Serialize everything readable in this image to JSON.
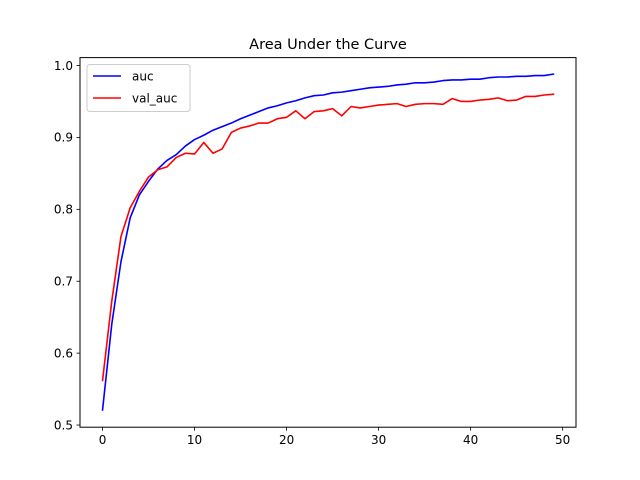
{
  "chart_data": {
    "type": "line",
    "title": "Area Under the Curve",
    "xlabel": "",
    "ylabel": "",
    "xlim": [
      -2.45,
      51.45
    ],
    "ylim": [
      0.497,
      1.011
    ],
    "xticks": [
      0,
      10,
      20,
      30,
      40,
      50
    ],
    "yticks": [
      0.5,
      0.6,
      0.7,
      0.8,
      0.9,
      1.0
    ],
    "ytick_labels": [
      "0.5",
      "0.6",
      "0.7",
      "0.8",
      "0.9",
      "1.0"
    ],
    "grid": false,
    "legend": "upper left",
    "x": [
      0,
      1,
      2,
      3,
      4,
      5,
      6,
      7,
      8,
      9,
      10,
      11,
      12,
      13,
      14,
      15,
      16,
      17,
      18,
      19,
      20,
      21,
      22,
      23,
      24,
      25,
      26,
      27,
      28,
      29,
      30,
      31,
      32,
      33,
      34,
      35,
      36,
      37,
      38,
      39,
      40,
      41,
      42,
      43,
      44,
      45,
      46,
      47,
      48,
      49
    ],
    "series": [
      {
        "name": "auc",
        "color": "#0000ff",
        "values": [
          0.521,
          0.64,
          0.727,
          0.788,
          0.82,
          0.839,
          0.856,
          0.868,
          0.876,
          0.888,
          0.897,
          0.903,
          0.91,
          0.915,
          0.92,
          0.926,
          0.931,
          0.936,
          0.941,
          0.944,
          0.948,
          0.951,
          0.955,
          0.958,
          0.959,
          0.962,
          0.963,
          0.965,
          0.967,
          0.969,
          0.97,
          0.971,
          0.973,
          0.974,
          0.976,
          0.976,
          0.977,
          0.979,
          0.98,
          0.98,
          0.981,
          0.981,
          0.983,
          0.984,
          0.984,
          0.985,
          0.985,
          0.986,
          0.986,
          0.988
        ]
      },
      {
        "name": "val_auc",
        "color": "#ff0000",
        "values": [
          0.562,
          0.672,
          0.762,
          0.802,
          0.825,
          0.845,
          0.855,
          0.859,
          0.872,
          0.878,
          0.877,
          0.893,
          0.878,
          0.884,
          0.907,
          0.913,
          0.916,
          0.92,
          0.92,
          0.926,
          0.928,
          0.937,
          0.926,
          0.936,
          0.937,
          0.94,
          0.93,
          0.943,
          0.941,
          0.943,
          0.945,
          0.946,
          0.947,
          0.943,
          0.946,
          0.947,
          0.947,
          0.946,
          0.954,
          0.95,
          0.95,
          0.952,
          0.953,
          0.955,
          0.951,
          0.952,
          0.957,
          0.957,
          0.959,
          0.96
        ]
      }
    ]
  }
}
